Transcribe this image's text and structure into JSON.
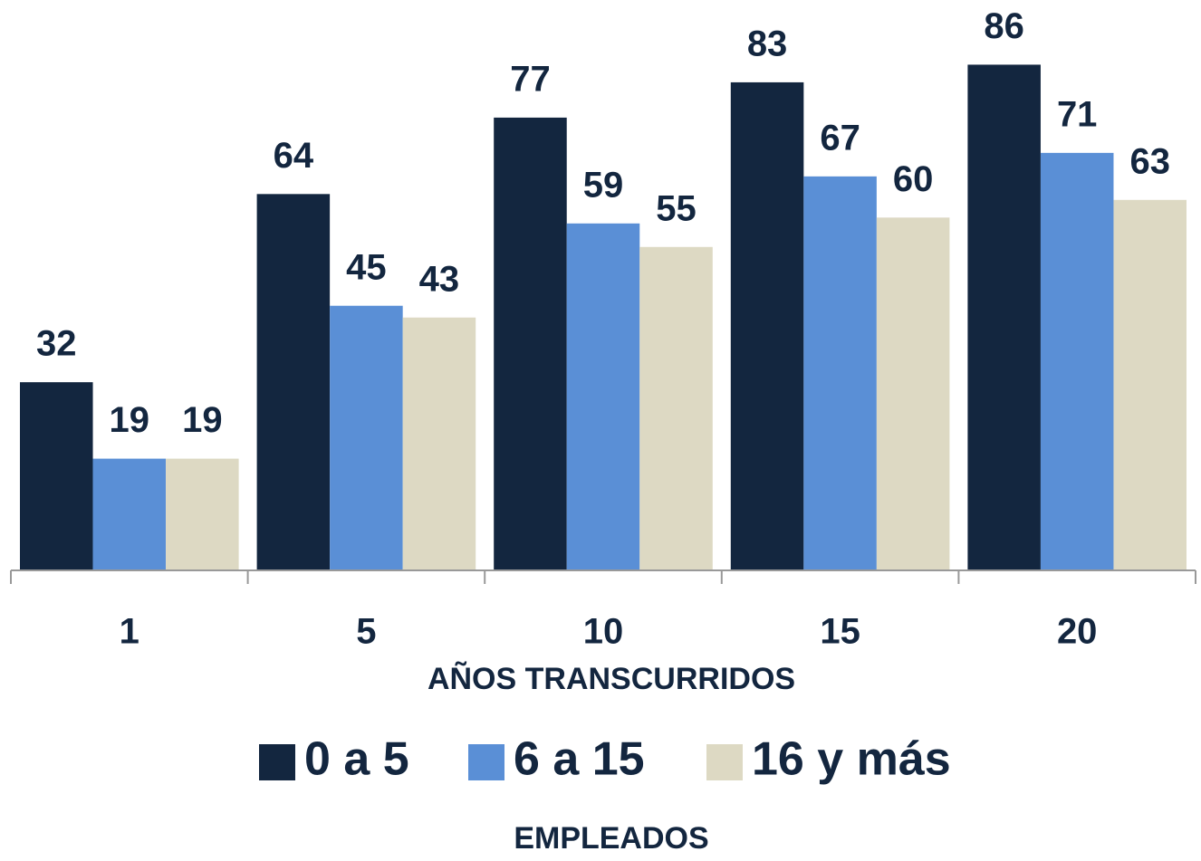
{
  "chart_data": {
    "type": "bar",
    "categories": [
      "1",
      "5",
      "10",
      "15",
      "20"
    ],
    "series": [
      {
        "name": "0 a 5",
        "color": "#13263f",
        "values": [
          32,
          64,
          77,
          83,
          86
        ]
      },
      {
        "name": "6 a 15",
        "color": "#5a8fd6",
        "values": [
          19,
          45,
          59,
          67,
          71
        ]
      },
      {
        "name": "16 y más",
        "color": "#ddd9c3",
        "values": [
          19,
          43,
          55,
          60,
          63
        ]
      }
    ],
    "xlabel": "AÑOS TRANSCURRIDOS",
    "legend_title": "EMPLEADOS",
    "ylim": [
      0,
      97
    ],
    "grid": false
  }
}
